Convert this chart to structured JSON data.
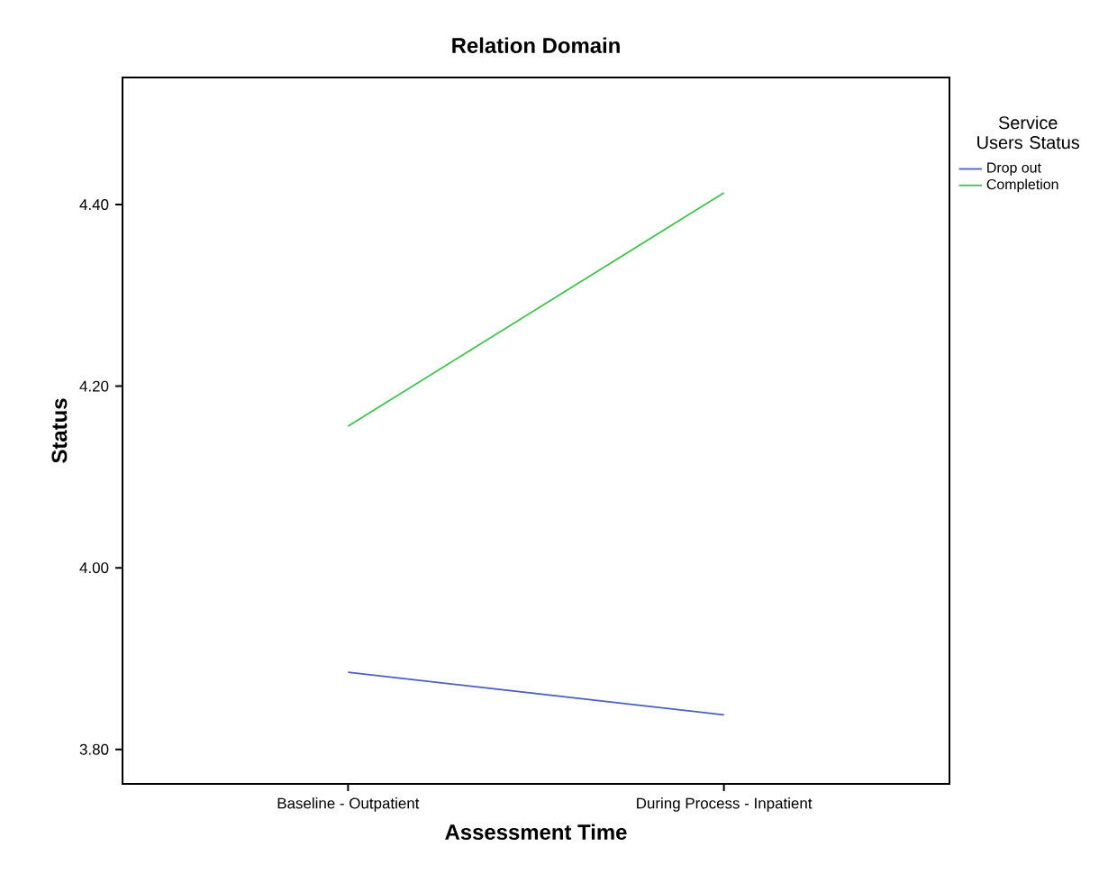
{
  "chart_data": {
    "type": "line",
    "title": "Relation Domain",
    "xlabel": "Assessment Time",
    "ylabel": "Status",
    "legend_title": "Service Users Status",
    "categories": [
      "Baseline - Outpatient",
      "During Process - Inpatient"
    ],
    "series": [
      {
        "name": "Drop out",
        "color": "#4a5fc1",
        "values": [
          3.885,
          3.838
        ]
      },
      {
        "name": "Completion",
        "color": "#3cc44a",
        "values": [
          4.156,
          4.413
        ]
      }
    ],
    "ylim": [
      3.762,
      4.54
    ],
    "yticks": [
      {
        "value": 3.8,
        "label": "3.80"
      },
      {
        "value": 4.0,
        "label": "4.00"
      },
      {
        "value": 4.2,
        "label": "4.20"
      },
      {
        "value": 4.4,
        "label": "4.40"
      }
    ],
    "grid": false,
    "legend": "top right",
    "marker": "none",
    "line_style": "solid"
  }
}
